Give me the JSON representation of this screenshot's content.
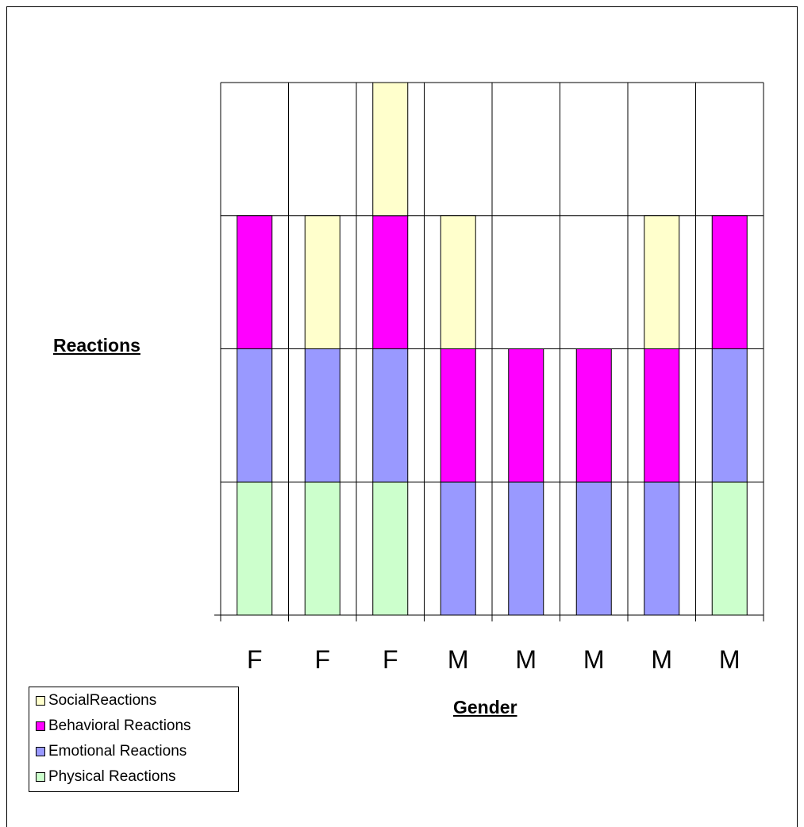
{
  "chart_data": {
    "type": "bar",
    "stacked": true,
    "categories": [
      "F",
      "F",
      "F",
      "M",
      "M",
      "M",
      "M",
      "M"
    ],
    "series": [
      {
        "name": "Physical Reactions",
        "color": "#ccffcc",
        "values": [
          1,
          1,
          1,
          0,
          0,
          0,
          0,
          1
        ]
      },
      {
        "name": "Emotional Reactions",
        "color": "#9999ff",
        "values": [
          1,
          1,
          1,
          1,
          1,
          1,
          1,
          1
        ]
      },
      {
        "name": "Behavioral Reactions",
        "color": "#ff00ff",
        "values": [
          1,
          0,
          1,
          1,
          1,
          1,
          1,
          1
        ]
      },
      {
        "name": "SocialReactions",
        "color": "#ffffcc",
        "values": [
          0,
          1,
          1,
          1,
          0,
          0,
          1,
          0
        ]
      }
    ],
    "title": "",
    "xlabel": "Gender",
    "ylabel": "Reactions",
    "ylim": [
      0,
      4
    ],
    "grid": true,
    "legend_position": "bottom-left"
  }
}
